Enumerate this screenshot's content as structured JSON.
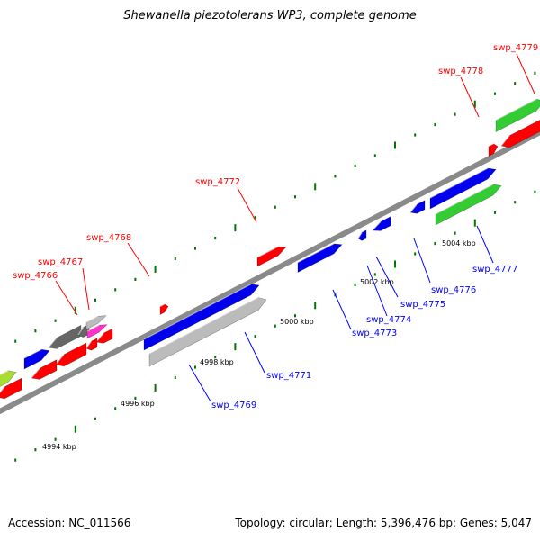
{
  "title": "Shewanella piezotolerans WP3, complete genome",
  "footer": {
    "accession": "Accession: NC_011566",
    "summary": "Topology: circular; Length: 5,396,476 bp; Genes: 5,047"
  },
  "scale_labels": [
    "4994 kbp",
    "4996 kbp",
    "4998 kbp",
    "5000 kbp",
    "5002 kbp",
    "5004 kbp"
  ],
  "gene_labels_forward": [
    "swp_4766",
    "swp_4767",
    "swp_4768",
    "swp_4772",
    "swp_4778",
    "swp_4779"
  ],
  "gene_labels_reverse": [
    "swp_4769",
    "swp_4771",
    "swp_4773",
    "swp_4774",
    "swp_4775",
    "swp_4776",
    "swp_4777"
  ],
  "colors": {
    "forward_label": "#ff0000",
    "reverse_label": "#0000ff",
    "tick": "#007700",
    "backbone": "#888888",
    "cds_red": "#ff0000",
    "cds_blue": "#0000ee",
    "cds_green": "#33cc33",
    "cds_gray": "#bbbbbb",
    "cds_darkgray": "#666666",
    "cds_magenta": "#ff33cc",
    "cds_lime": "#aadd33"
  }
}
